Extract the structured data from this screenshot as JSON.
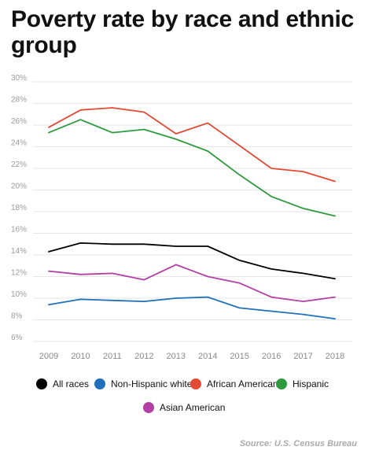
{
  "title": "Poverty rate by race and ethnic group",
  "source": "Source: U.S. Census Bureau",
  "chart_data": {
    "type": "line",
    "title": "Poverty rate by race and ethnic group",
    "xlabel": "",
    "ylabel": "",
    "x": [
      "2009",
      "2010",
      "2011",
      "2012",
      "2013",
      "2014",
      "2015",
      "2016",
      "2017",
      "2018"
    ],
    "ylim": [
      6,
      30
    ],
    "yticks": [
      "6%",
      "8%",
      "10%",
      "12%",
      "14%",
      "16%",
      "18%",
      "20%",
      "22%",
      "24%",
      "26%",
      "28%",
      "30%"
    ],
    "grid": true,
    "legend_position": "bottom",
    "series": [
      {
        "name": "All races",
        "color": "#000000",
        "values": [
          14.3,
          15.1,
          15.0,
          15.0,
          14.8,
          14.8,
          13.5,
          12.7,
          12.3,
          11.8
        ]
      },
      {
        "name": "Non-Hispanic white",
        "color": "#1f6fba",
        "values": [
          9.4,
          9.9,
          9.8,
          9.7,
          10.0,
          10.1,
          9.1,
          8.8,
          8.5,
          8.1
        ]
      },
      {
        "name": "African American",
        "color": "#e34a33",
        "values": [
          25.8,
          27.4,
          27.6,
          27.2,
          25.2,
          26.2,
          24.1,
          22.0,
          21.7,
          20.8
        ]
      },
      {
        "name": "Hispanic",
        "color": "#2e9a3e",
        "values": [
          25.3,
          26.5,
          25.3,
          25.6,
          24.7,
          23.6,
          21.4,
          19.4,
          18.3,
          17.6
        ]
      },
      {
        "name": "Asian American",
        "color": "#b33ea6",
        "values": [
          12.5,
          12.2,
          12.3,
          11.7,
          13.1,
          12.0,
          11.4,
          10.1,
          9.7,
          10.1
        ]
      }
    ]
  }
}
